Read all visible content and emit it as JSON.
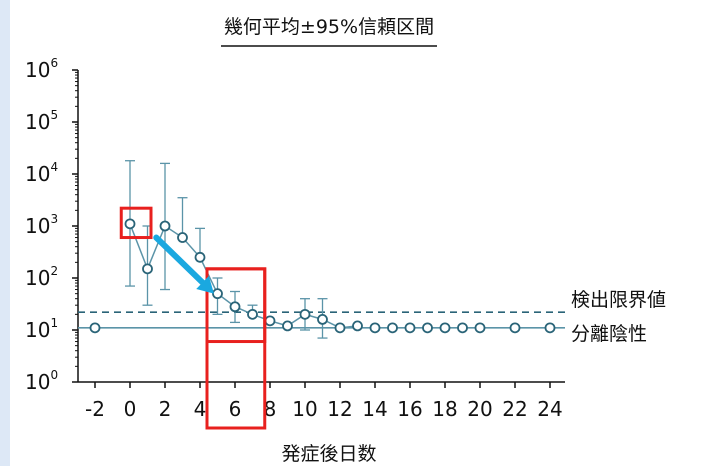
{
  "chart_data": {
    "type": "scatter",
    "title": "幾何平均±95%信頼区間",
    "xlabel": "発症後日数",
    "ylabel": "",
    "y_scale": "log",
    "ylim": [
      1,
      1000000
    ],
    "xlim": [
      -3,
      25
    ],
    "x_ticks": [
      -2,
      0,
      2,
      4,
      6,
      8,
      10,
      12,
      14,
      16,
      18,
      20,
      22,
      24
    ],
    "y_tick_exponents": [
      0,
      1,
      2,
      3,
      4,
      5,
      6
    ],
    "y_tick_base": "10",
    "grid": false,
    "series": [
      {
        "x": [
          -2,
          0,
          1,
          2,
          3,
          4,
          5,
          6,
          7,
          8,
          9,
          10,
          11,
          12,
          13,
          14,
          15,
          16,
          17,
          18,
          19,
          20,
          22,
          24
        ],
        "y": [
          11,
          1100,
          150,
          1000,
          600,
          250,
          50,
          28,
          20,
          15,
          12,
          20,
          16,
          11,
          12,
          11,
          11,
          11,
          11,
          11,
          11,
          11,
          11,
          11
        ],
        "ci_low": [
          null,
          70,
          30,
          60,
          null,
          null,
          20,
          14,
          null,
          null,
          null,
          10,
          7,
          null,
          null,
          null,
          null,
          null,
          null,
          null,
          null,
          null,
          null,
          null
        ],
        "ci_high": [
          null,
          18000,
          1000,
          16000,
          3500,
          900,
          100,
          55,
          30,
          null,
          null,
          40,
          40,
          null,
          null,
          null,
          null,
          null,
          null,
          null,
          null,
          null,
          null,
          null
        ]
      }
    ],
    "reference_lines": [
      {
        "label": "検出限界値",
        "y": 22,
        "style": "dashed"
      },
      {
        "label": "分離陰性",
        "y": 11,
        "style": "solid"
      }
    ],
    "colors": {
      "series": "#5b94a8",
      "dashed_line": "#2a6478",
      "highlight_box": "#e8201e",
      "arrow": "#1aa8e0"
    },
    "highlights": [
      {
        "x_from": -0.5,
        "x_to": 1.2,
        "y_from": 600,
        "y_to": 2200
      },
      {
        "x_from": 4.4,
        "x_to": 7.7,
        "y_from": 6,
        "y_to": 150
      }
    ],
    "arrow": {
      "x_from": 1.5,
      "y_from": 600,
      "x_to": 4.8,
      "y_to": 50
    }
  }
}
